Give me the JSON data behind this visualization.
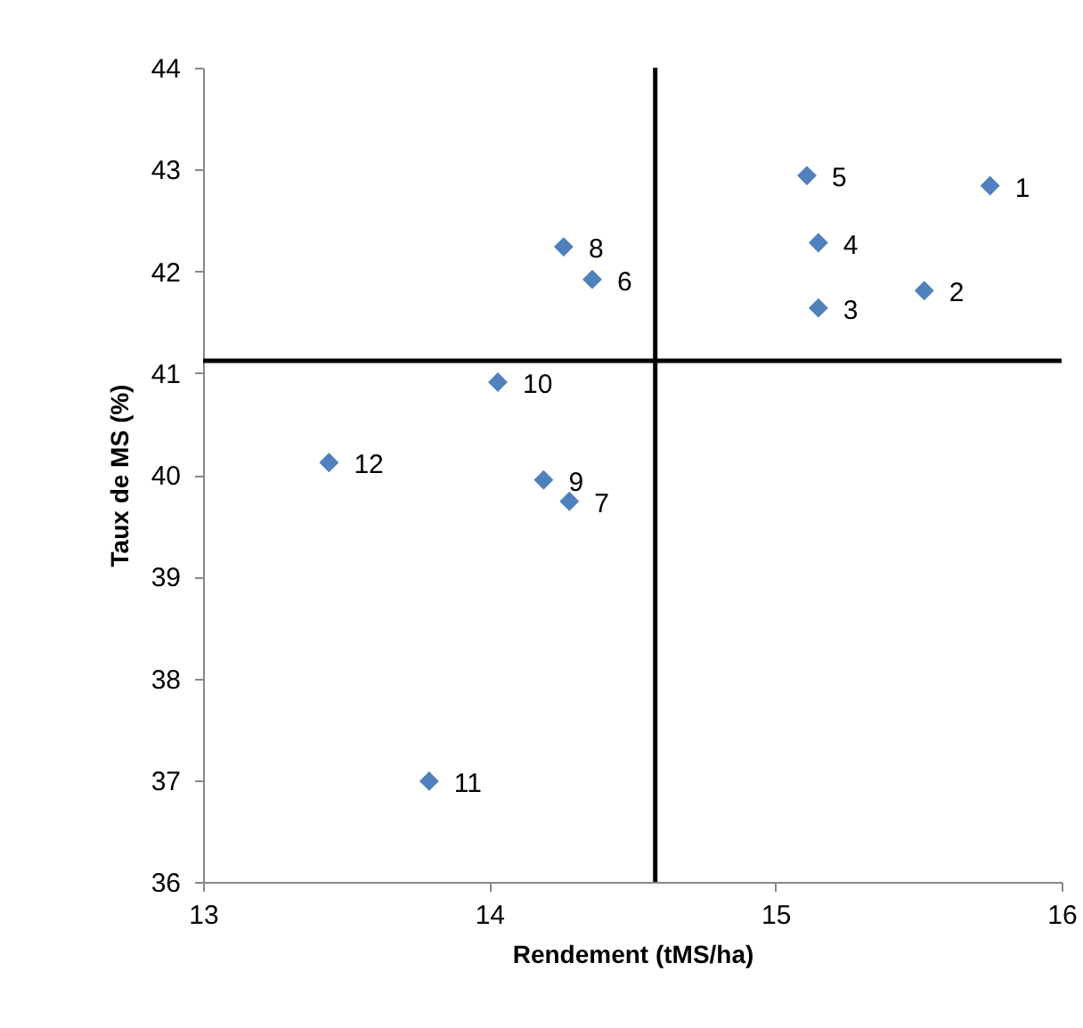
{
  "chart_data": {
    "type": "scatter",
    "xlabel": "Rendement (tMS/ha)",
    "ylabel": "Taux de MS (%)",
    "x": [
      15.75,
      15.52,
      15.15,
      15.15,
      15.11,
      14.36,
      14.28,
      14.26,
      14.19,
      14.03,
      13.79,
      13.44
    ],
    "series": [
      {
        "color": "#4f81bd",
        "values": [
          42.84,
          41.81,
          41.64,
          42.28,
          42.94,
          41.92,
          39.74,
          42.24,
          39.95,
          40.91,
          36.99,
          40.12
        ]
      }
    ],
    "xlim": [
      13,
      16
    ],
    "xticks": [
      13,
      14,
      15,
      16
    ],
    "ylim": [
      36,
      44
    ],
    "yticks": [
      36,
      37,
      38,
      39,
      40,
      41,
      42,
      43,
      44
    ],
    "marker": "diamond",
    "grid": false,
    "ref_lines": [
      {
        "axis": "x",
        "value": 14.58,
        "color": "#000000"
      },
      {
        "axis": "y",
        "value": 41.12,
        "color": "#000000"
      }
    ],
    "annotations": [
      {
        "text": "1",
        "x": 15.75,
        "y": 42.84
      },
      {
        "text": "2",
        "x": 15.52,
        "y": 41.81
      },
      {
        "text": "3",
        "x": 15.15,
        "y": 41.64
      },
      {
        "text": "4",
        "x": 15.15,
        "y": 42.28
      },
      {
        "text": "5",
        "x": 15.11,
        "y": 42.94
      },
      {
        "text": "6",
        "x": 14.36,
        "y": 41.92
      },
      {
        "text": "7",
        "x": 14.28,
        "y": 39.74
      },
      {
        "text": "8",
        "x": 14.26,
        "y": 42.24
      },
      {
        "text": "9",
        "x": 14.19,
        "y": 39.95
      },
      {
        "text": "10",
        "x": 14.03,
        "y": 40.91
      },
      {
        "text": "11",
        "x": 13.79,
        "y": 36.99
      },
      {
        "text": "12",
        "x": 13.44,
        "y": 40.12
      }
    ]
  }
}
